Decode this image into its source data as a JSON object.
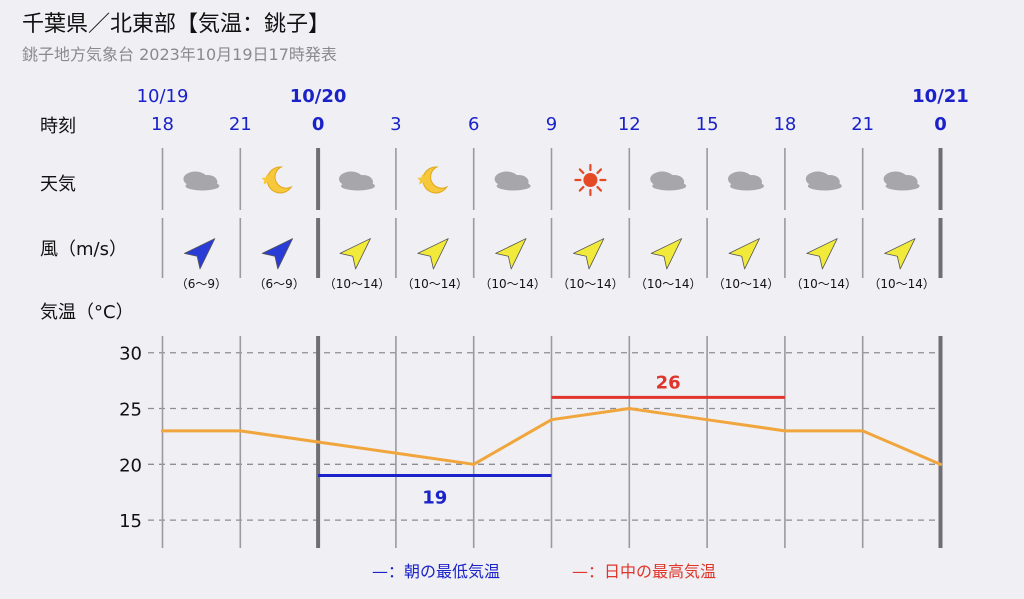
{
  "header": {
    "title": "千葉県／北東部【気温：銚子】",
    "subtitle": "銚子地方気象台 2023年10月19日17時発表"
  },
  "rows": {
    "time_label": "時刻",
    "weather_label": "天気",
    "wind_label": "風（m/s）",
    "temp_label": "気温（°C）"
  },
  "legend": {
    "min_label": "—：朝の最低気温",
    "max_label": "—：日中の最高気温"
  },
  "colors": {
    "hour_text": "#1a22c8",
    "temp_line": "#f0a63c",
    "min_line": "#1a22c8",
    "max_line": "#e0352b",
    "wind_dark": "#2a3cd6",
    "wind_light": "#f2ea3a"
  },
  "chart_data": {
    "type": "line",
    "dates": [
      {
        "label": "10/19",
        "at": 0,
        "bold": false
      },
      {
        "label": "10/20",
        "at": 2,
        "bold": true
      },
      {
        "label": "10/21",
        "at": 10,
        "bold": true
      }
    ],
    "hours": [
      "18",
      "21",
      "0",
      "3",
      "6",
      "9",
      "12",
      "15",
      "18",
      "21",
      "0"
    ],
    "day_boundaries": [
      2,
      10
    ],
    "weather": [
      "cloudy-icon",
      "moon-icon",
      "cloudy-icon",
      "moon-icon",
      "cloudy-icon",
      "sunny-icon",
      "cloudy-icon",
      "cloudy-icon",
      "cloudy-icon",
      "cloudy-icon"
    ],
    "wind": [
      {
        "range": "（6〜9）",
        "direction": "NE",
        "strength": "strong-color"
      },
      {
        "range": "（6〜9）",
        "direction": "NE",
        "strength": "strong-color"
      },
      {
        "range": "（10〜14）",
        "direction": "NE",
        "strength": "light-color"
      },
      {
        "range": "（10〜14）",
        "direction": "NE",
        "strength": "light-color"
      },
      {
        "range": "（10〜14）",
        "direction": "NE",
        "strength": "light-color"
      },
      {
        "range": "（10〜14）",
        "direction": "NE",
        "strength": "light-color"
      },
      {
        "range": "（10〜14）",
        "direction": "NE",
        "strength": "light-color"
      },
      {
        "range": "（10〜14）",
        "direction": "NE",
        "strength": "light-color"
      },
      {
        "range": "（10〜14）",
        "direction": "NE",
        "strength": "light-color"
      },
      {
        "range": "（10〜14）",
        "direction": "NE",
        "strength": "light-color"
      }
    ],
    "temperature": [
      23,
      23,
      22,
      21,
      20,
      24,
      25,
      24,
      23,
      23,
      20
    ],
    "ylim": [
      12.5,
      31.5
    ],
    "yticks": [
      15,
      20,
      25,
      30
    ],
    "grid": true,
    "min_temp": {
      "value": 19,
      "label": "19",
      "from": 2,
      "to": 5
    },
    "max_temp": {
      "value": 26,
      "label": "26",
      "from": 5,
      "to": 8
    }
  }
}
